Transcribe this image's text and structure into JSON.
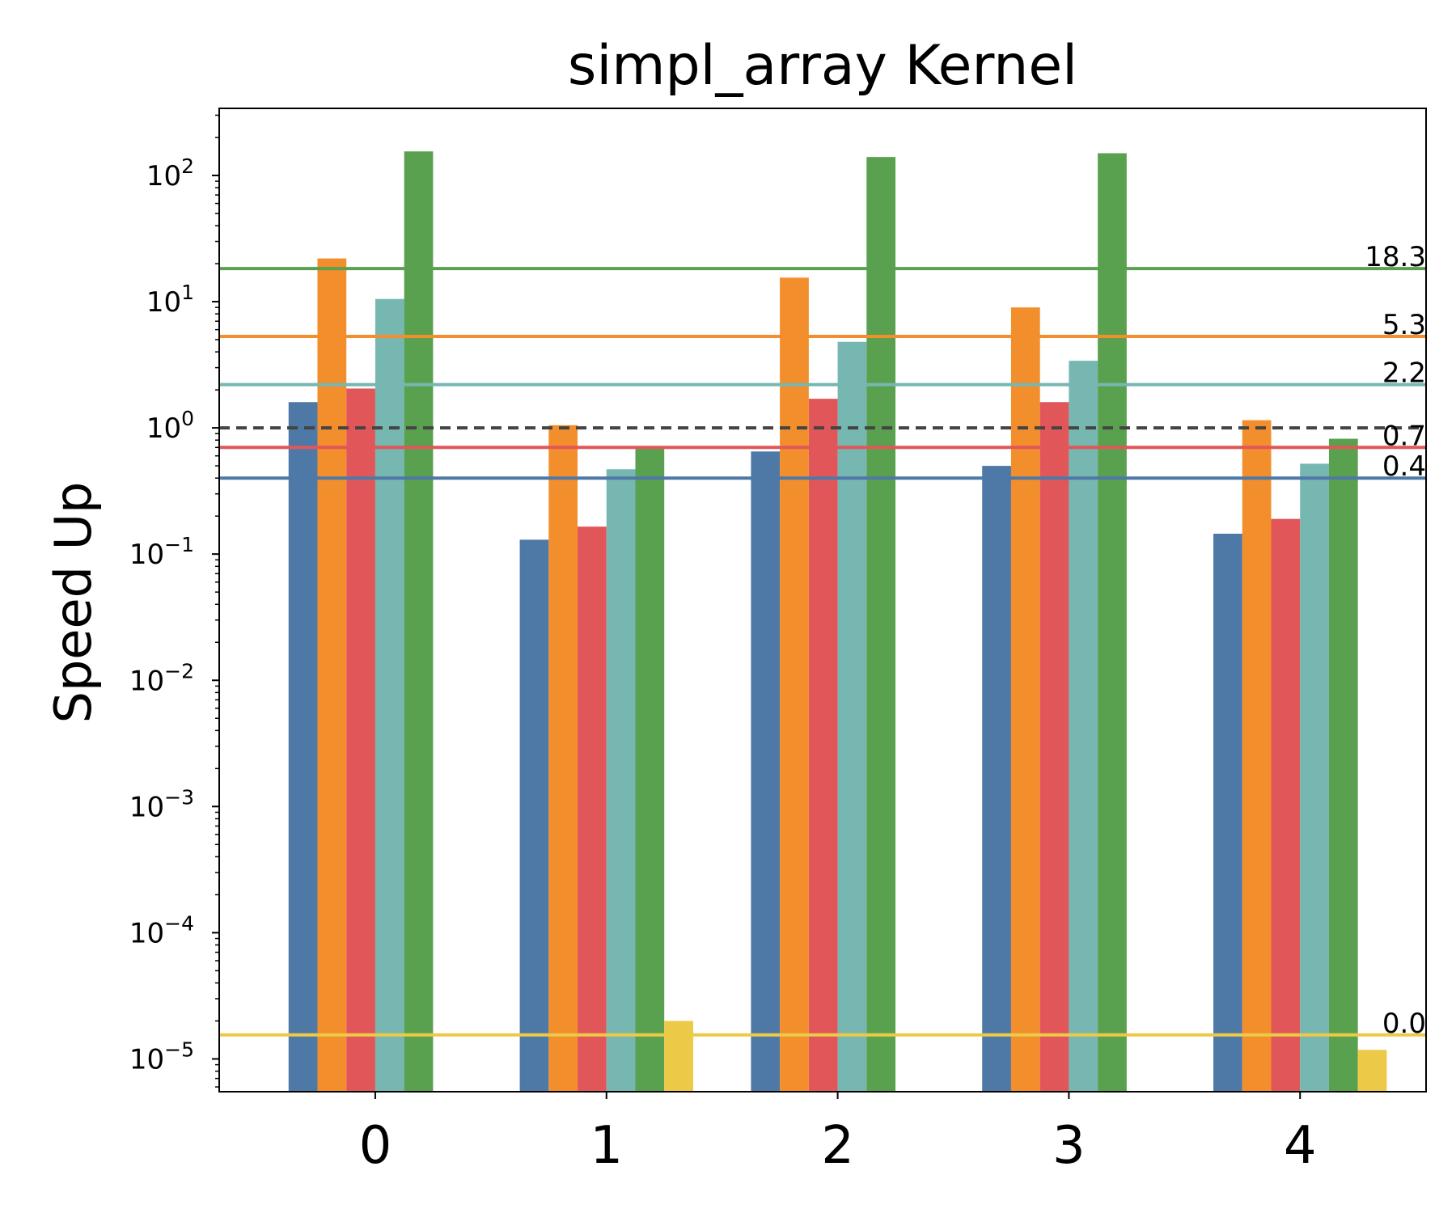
{
  "chart_data": {
    "type": "bar",
    "title": "simpl_array Kernel",
    "xlabel": "",
    "ylabel": "Speed Up",
    "yscale": "log",
    "ylim": [
      5.5e-06,
      340
    ],
    "categories": [
      "0",
      "1",
      "2",
      "3",
      "4"
    ],
    "y_tick_labels": [
      {
        "base": "10",
        "exp": "2",
        "value": 100
      },
      {
        "base": "10",
        "exp": "1",
        "value": 10
      },
      {
        "base": "10",
        "exp": "0",
        "value": 1
      },
      {
        "base": "10",
        "exp": "−1",
        "value": 0.1
      },
      {
        "base": "10",
        "exp": "−2",
        "value": 0.01
      },
      {
        "base": "10",
        "exp": "−3",
        "value": 0.001
      },
      {
        "base": "10",
        "exp": "−4",
        "value": 0.0001
      },
      {
        "base": "10",
        "exp": "−5",
        "value": 1e-05
      }
    ],
    "series": [
      {
        "color": "#4e79a7",
        "values": [
          1.6,
          0.13,
          0.65,
          0.5,
          0.145
        ]
      },
      {
        "color": "#f28e2b",
        "values": [
          22,
          1.05,
          15.5,
          9,
          1.15
        ]
      },
      {
        "color": "#e15759",
        "values": [
          2.05,
          0.165,
          1.7,
          1.6,
          0.19
        ]
      },
      {
        "color": "#76b7b2",
        "values": [
          10.5,
          0.47,
          4.8,
          3.4,
          0.52
        ]
      },
      {
        "color": "#59a14f",
        "values": [
          155,
          0.7,
          140,
          150,
          0.82
        ]
      },
      {
        "color": "#edc948",
        "values": [
          null,
          2e-05,
          null,
          null,
          1.18e-05
        ]
      }
    ],
    "reference_lines": [
      {
        "value": 18.3,
        "label": "18.3",
        "color": "#59a14f",
        "style": "solid"
      },
      {
        "value": 5.3,
        "label": "5.3",
        "color": "#f28e2b",
        "style": "solid"
      },
      {
        "value": 2.2,
        "label": "2.2",
        "color": "#76b7b2",
        "style": "solid"
      },
      {
        "value": 0.7,
        "label": "0.7",
        "color": "#e15759",
        "style": "solid"
      },
      {
        "value": 0.4,
        "label": "0.4",
        "color": "#4e79a7",
        "style": "solid"
      },
      {
        "value": 1.55e-05,
        "label": "0.0",
        "color": "#edc948",
        "style": "solid"
      },
      {
        "value": 1,
        "label": "",
        "color": "#444444",
        "style": "dashed"
      }
    ],
    "grid": false,
    "legend": "none"
  }
}
